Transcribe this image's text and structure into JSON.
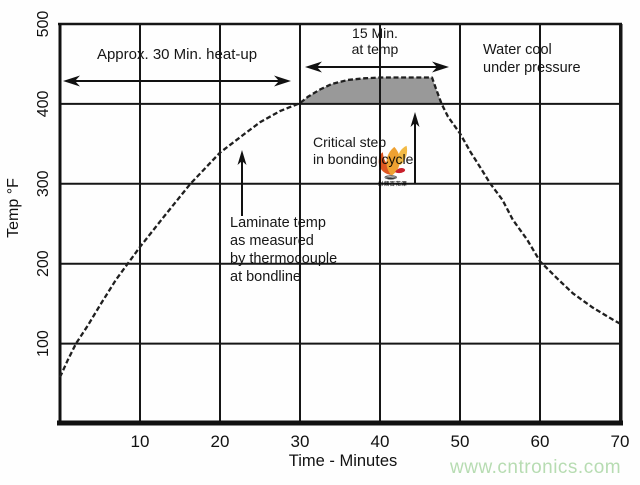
{
  "chart_data": {
    "type": "line",
    "title": "",
    "xlabel": "Time - Minutes",
    "ylabel": "Temp °F",
    "xlim": [
      0,
      70
    ],
    "ylim": [
      0,
      500
    ],
    "x_ticks": [
      10,
      20,
      30,
      40,
      50,
      60,
      70
    ],
    "y_ticks": [
      100,
      200,
      300,
      400,
      500
    ],
    "grid": true,
    "line_color": "#1f1f1f",
    "line_style": "dashed",
    "series": [
      {
        "name": "laminate-temp-at-bondline",
        "points": [
          [
            0,
            58
          ],
          [
            1,
            80
          ],
          [
            2,
            100
          ],
          [
            3.5,
            123
          ],
          [
            5,
            148
          ],
          [
            7,
            180
          ],
          [
            10,
            221
          ],
          [
            13,
            259
          ],
          [
            16.3,
            300
          ],
          [
            20,
            339
          ],
          [
            23,
            362
          ],
          [
            25,
            377
          ],
          [
            27.5,
            391
          ],
          [
            30,
            401
          ],
          [
            31,
            409
          ],
          [
            32.5,
            418
          ],
          [
            34,
            425
          ],
          [
            36,
            430
          ],
          [
            38,
            432
          ],
          [
            40,
            433
          ],
          [
            43,
            433
          ],
          [
            46.5,
            433
          ],
          [
            47,
            419
          ],
          [
            47.7,
            400
          ],
          [
            48.5,
            384
          ],
          [
            50,
            363
          ],
          [
            51.3,
            340
          ],
          [
            52.5,
            321
          ],
          [
            53.8,
            300
          ],
          [
            55.3,
            280
          ],
          [
            56.6,
            255
          ],
          [
            58.4,
            230
          ],
          [
            60,
            203
          ],
          [
            62.1,
            182
          ],
          [
            64.1,
            163
          ],
          [
            66.6,
            145
          ],
          [
            68.1,
            136
          ],
          [
            69.1,
            130
          ],
          [
            70,
            125
          ]
        ]
      }
    ],
    "shaded_region": {
      "description": "time above 400°F (critical bonding step)",
      "t_from": 30,
      "t_to": 47.7,
      "base_temp": 400,
      "color": "#999999"
    }
  },
  "axes": {
    "y_title": "Temp °F",
    "x_title": "Time - Minutes"
  },
  "annotations": {
    "heatup": "Approx. 30 Min. heat-up",
    "at_temp": "15 Min.\nat temp",
    "water_cool": "Water cool\nunder pressure",
    "critical": "Critical step\nin bonding cycle",
    "laminate": "Laminate temp\nas measured\nby thermocouple\nat bondline"
  },
  "logo": {
    "text": "射频百花潭",
    "text_color": "#3e3e3e",
    "petal_left_color": "#df5722",
    "petal_main_color": "#efa232",
    "petal_right_color": "#f3bb45",
    "swoosh_color": "#c9202b"
  },
  "watermark": {
    "text": "www.cntronics.com",
    "color": "#b7dcb2"
  }
}
